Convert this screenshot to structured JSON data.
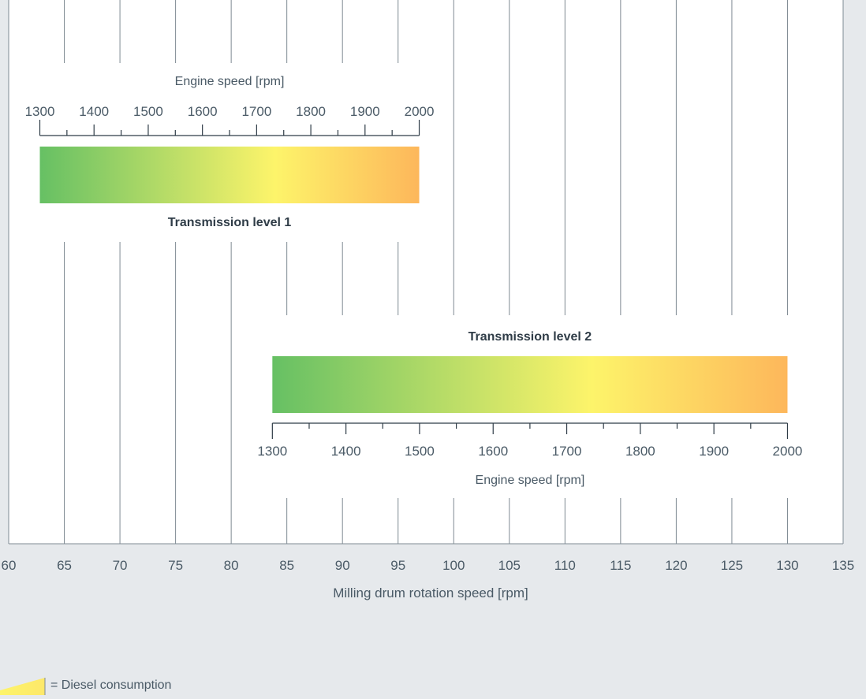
{
  "chart_data": {
    "type": "range-bar",
    "xlabel": "Milling drum rotation speed [rpm]",
    "xlim": [
      60,
      135
    ],
    "xticks": [
      "60",
      "65",
      "70",
      "75",
      "80",
      "85",
      "90",
      "95",
      "100",
      "105",
      "110",
      "115",
      "120",
      "125",
      "130",
      "135"
    ],
    "grid": true,
    "bars": [
      {
        "name": "Transmission level 1",
        "drum_speed_range": [
          62.8,
          96.9
        ],
        "engine_speed_range": [
          1300,
          2000
        ],
        "engine_axis_label": "Engine speed [rpm]",
        "engine_axis_position": "above",
        "engine_ticks": [
          "1300",
          "1400",
          "1500",
          "1600",
          "1700",
          "1800",
          "1900",
          "2000"
        ],
        "gradient": [
          "#66c064",
          "#fdf46a",
          "#fdb75b"
        ]
      },
      {
        "name": "Transmission level 2",
        "drum_speed_range": [
          83.7,
          130.0
        ],
        "engine_speed_range": [
          1300,
          2000
        ],
        "engine_axis_label": "Engine speed [rpm]",
        "engine_axis_position": "below",
        "engine_ticks": [
          "1300",
          "1400",
          "1500",
          "1600",
          "1700",
          "1800",
          "1900",
          "2000"
        ],
        "gradient": [
          "#66c064",
          "#fdf46a",
          "#fdb75b"
        ]
      }
    ]
  },
  "legend": {
    "label": "= Diesel consumption"
  },
  "colors": {
    "background": "#e6e9ec",
    "plot_area": "#ffffff",
    "grid": "#7f8a93",
    "text": "#4a5a66",
    "title_text": "#2f3c47"
  }
}
